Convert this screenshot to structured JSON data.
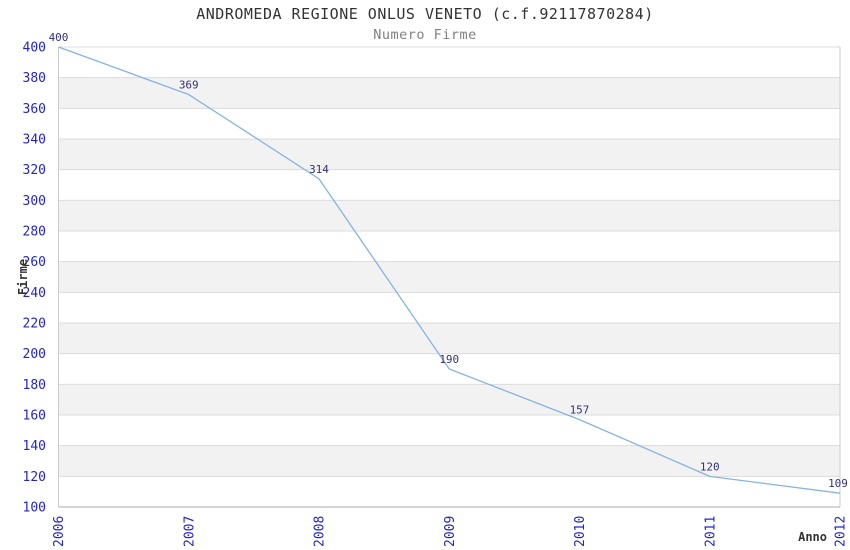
{
  "chart_data": {
    "type": "line",
    "title": "ANDROMEDA REGIONE ONLUS VENETO (c.f.92117870284)",
    "subtitle": "Numero Firme",
    "xlabel": "Anno",
    "ylabel": "Firme",
    "categories": [
      "2006",
      "2007",
      "2008",
      "2009",
      "2010",
      "2011",
      "2012"
    ],
    "series": [
      {
        "name": "Numero Firme",
        "values": [
          400,
          369,
          314,
          190,
          157,
          120,
          109
        ]
      }
    ],
    "data_labels": [
      "400",
      "369",
      "314",
      "190",
      "157",
      "120",
      "109"
    ],
    "ylim": [
      100,
      400
    ],
    "y_tick_step": 20,
    "y_ticks": [
      100,
      120,
      140,
      160,
      180,
      200,
      220,
      240,
      260,
      280,
      300,
      320,
      340,
      360,
      380,
      400
    ],
    "grid": true,
    "legend": "none",
    "band_fill": "alternating-horizontal",
    "tick_label_rotation_x": -90,
    "colors": {
      "line": "#85b3e3",
      "tick_label": "#2424cc",
      "data_label": "#333377",
      "band": "#f2f2f2",
      "gridline": "#dcdcdc",
      "plot_border": "#cccccc",
      "axis_line": "#aaaaaa",
      "title": "#333333",
      "subtitle": "#808080",
      "axis_title": "#333333",
      "background": "#ffffff"
    }
  }
}
